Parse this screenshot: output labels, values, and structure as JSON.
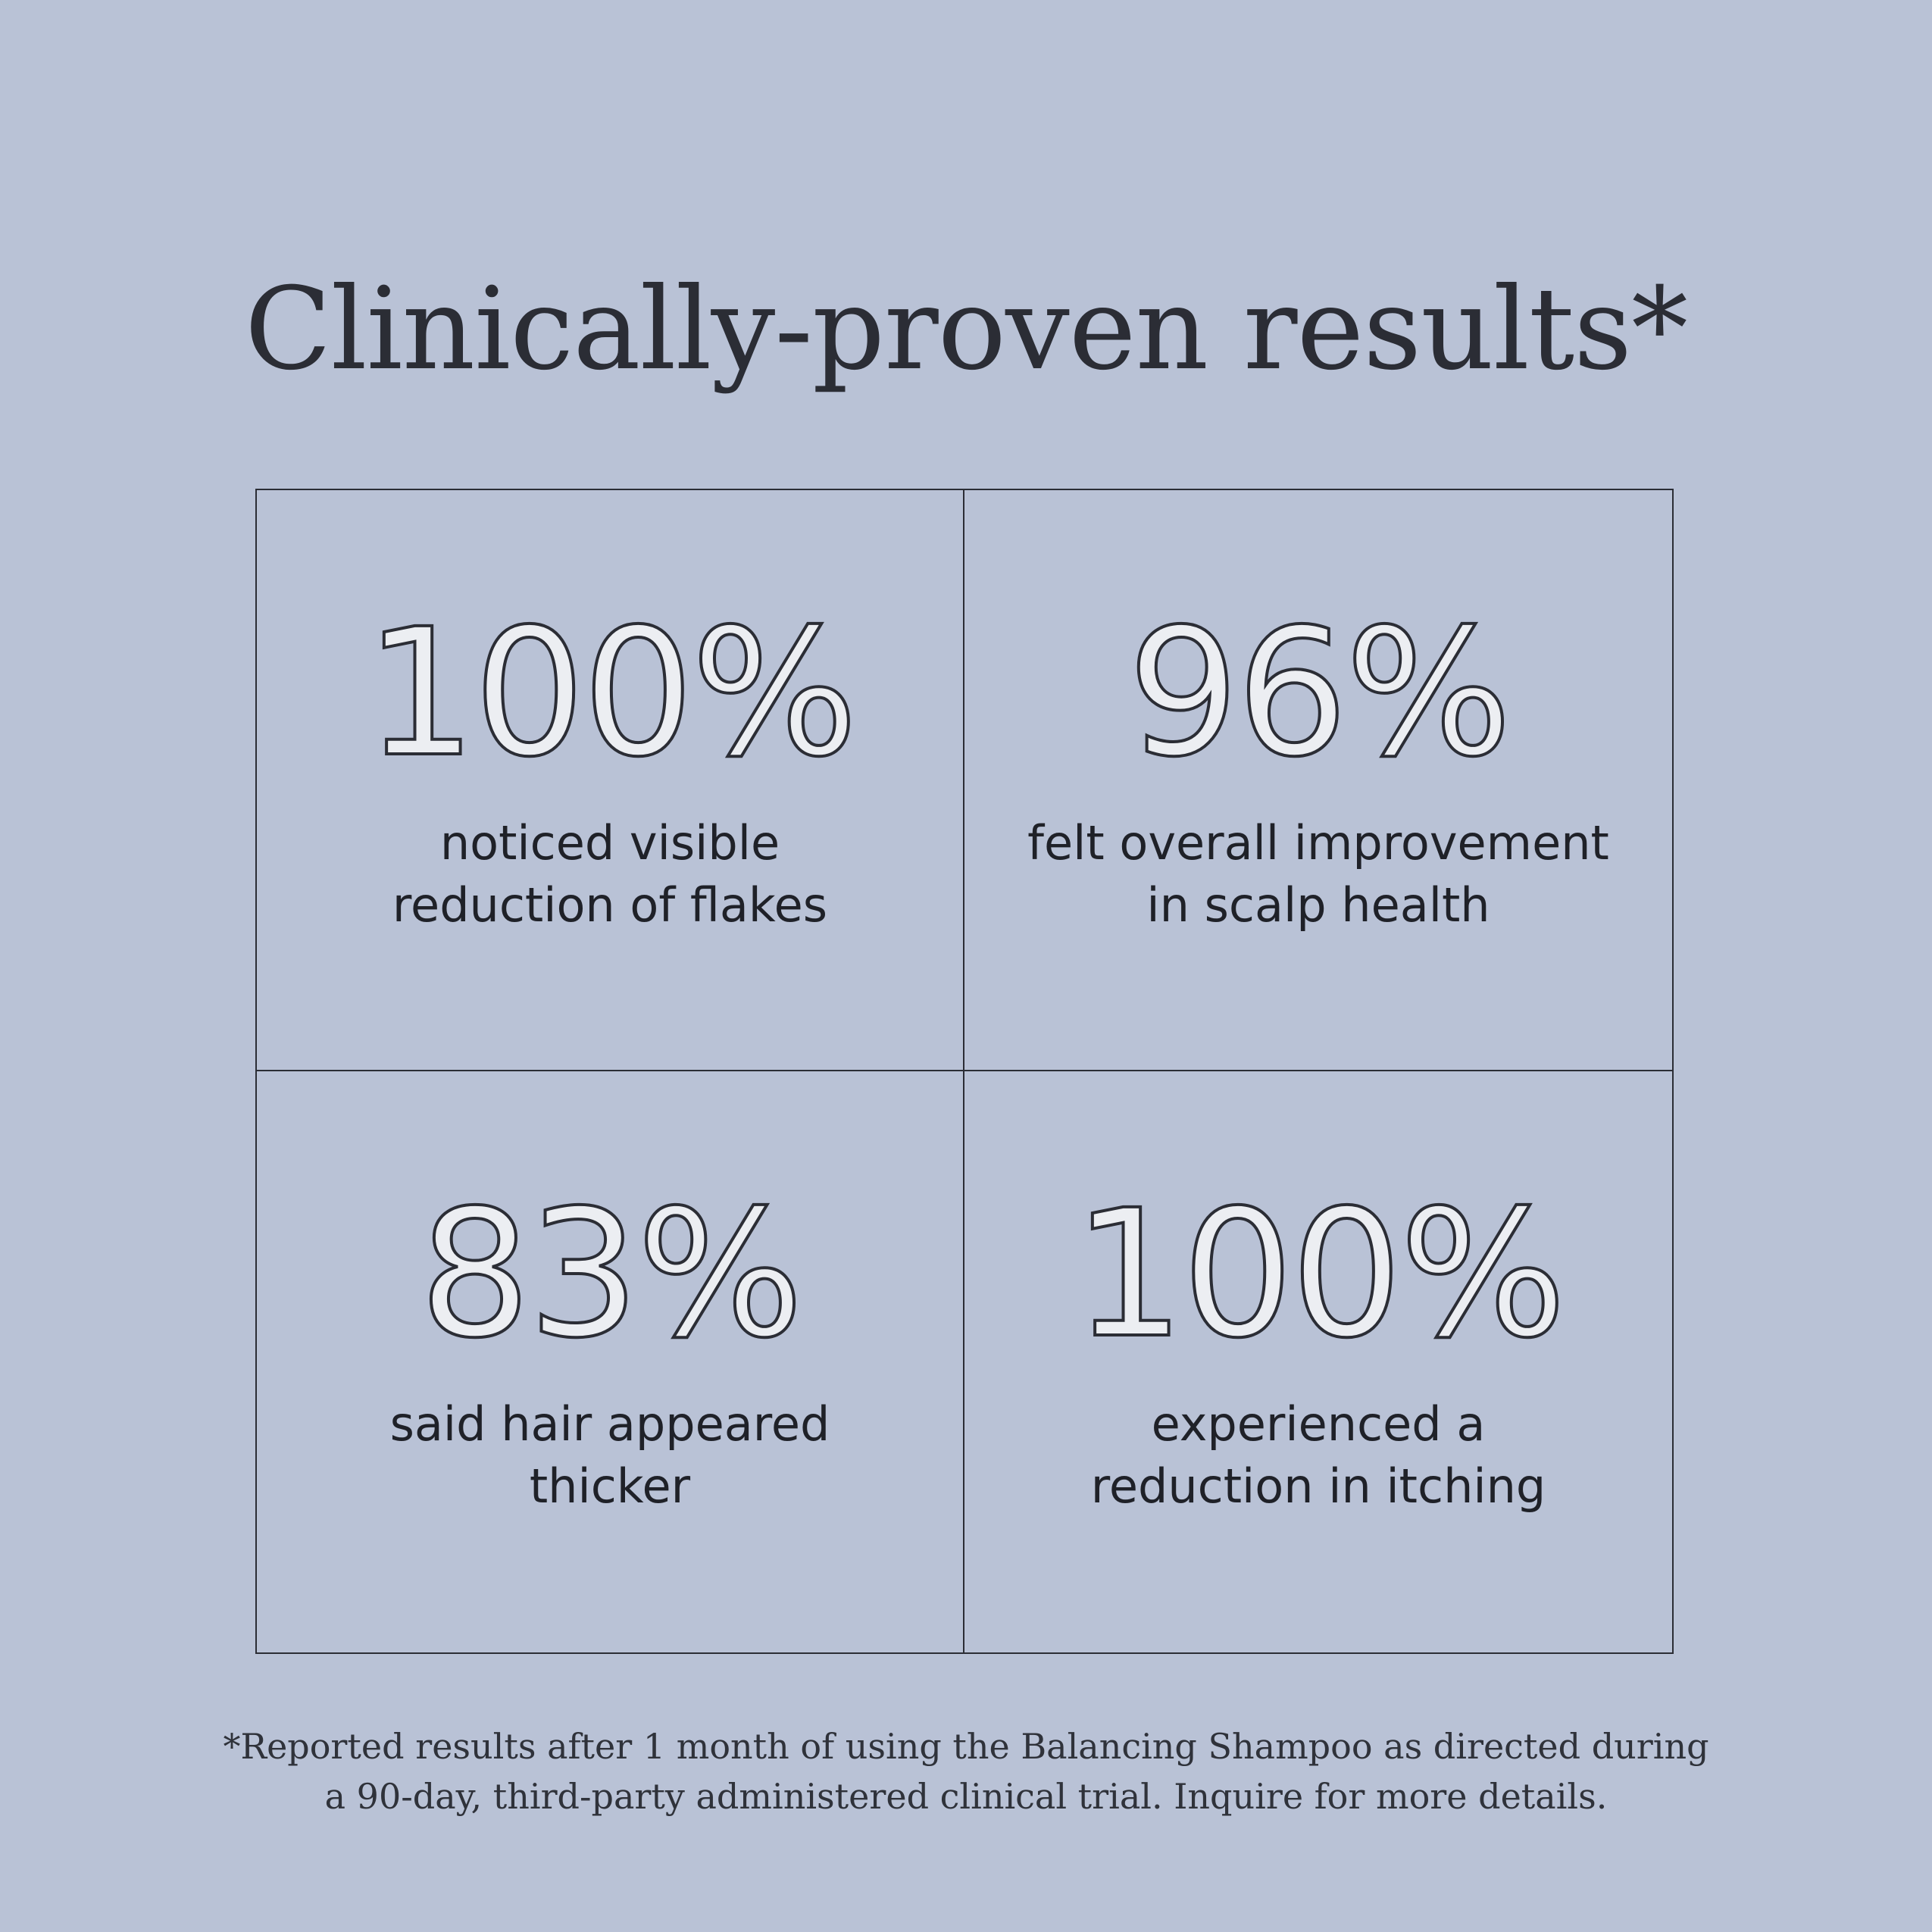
{
  "title": "Clinically-proven results*",
  "stats": [
    {
      "value": "100%",
      "caption_lines": [
        "noticed visible",
        "reduction of flakes"
      ]
    },
    {
      "value": "96%",
      "caption_lines": [
        "felt overall improvement",
        "in scalp health"
      ]
    },
    {
      "value": "83%",
      "caption_lines": [
        "said hair appeared",
        "thicker"
      ]
    },
    {
      "value": "100%",
      "caption_lines": [
        "experienced a",
        "reduction in itching"
      ]
    }
  ],
  "footnote_lines": [
    "*Reported results after 1 month of using the Balancing Shampoo as directed during",
    "a 90-day, third-party administered clinical trial. Inquire for more details."
  ],
  "colors": {
    "background": "#b9c2d6",
    "text": "#2b2d35",
    "stat_fill": "#eceef2"
  }
}
